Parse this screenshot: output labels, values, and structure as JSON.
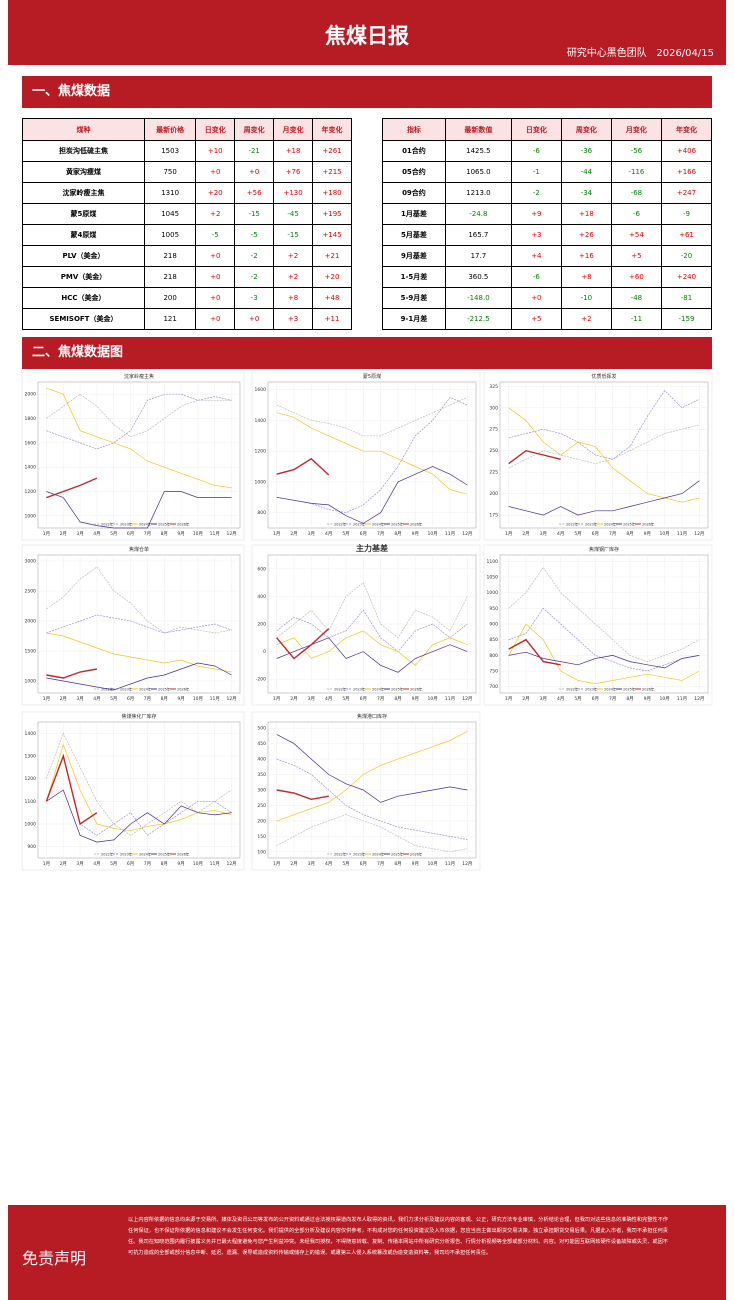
{
  "header": {
    "title": "焦煤日报",
    "team": "研究中心黑色团队",
    "date": "2026/04/15"
  },
  "sections": [
    "一、焦煤数据",
    "二、焦煤数据图"
  ],
  "tables": [
    {
      "columns": [
        "煤种",
        "最新价格",
        "日变化",
        "周变化",
        "月变化",
        "年变化"
      ],
      "rows": [
        [
          "担炭沟低硫主焦",
          "1503",
          "+10",
          "-21",
          "+18",
          "+261"
        ],
        [
          "黄家沟瘦煤",
          "750",
          "+0",
          "+0",
          "+76",
          "+215"
        ],
        [
          "沈家岭瘦主焦",
          "1310",
          "+20",
          "+56",
          "+130",
          "+180"
        ],
        [
          "蒙5原煤",
          "1045",
          "+2",
          "-15",
          "-45",
          "+195"
        ],
        [
          "蒙4原煤",
          "1005",
          "-5",
          "-5",
          "-15",
          "+145"
        ],
        [
          "PLV（美金）",
          "218",
          "+0",
          "-2",
          "+2",
          "+21"
        ],
        [
          "PMV（美金）",
          "218",
          "+0",
          "-2",
          "+2",
          "+20"
        ],
        [
          "HCC（美金）",
          "200",
          "+0",
          "-3",
          "+8",
          "+48"
        ],
        [
          "SEMISOFT（美金）",
          "121",
          "+0",
          "+0",
          "+3",
          "+11"
        ]
      ]
    },
    {
      "columns": [
        "指标",
        "最新数值",
        "日变化",
        "周变化",
        "月变化",
        "年变化"
      ],
      "rows": [
        [
          "01合约",
          "1425.5",
          "-6",
          "-36",
          "-56",
          "+406"
        ],
        [
          "05合约",
          "1065.0",
          "-1",
          "-44",
          "-116",
          "+166"
        ],
        [
          "09合约",
          "1213.0",
          "-2",
          "-34",
          "-68",
          "+247"
        ],
        [
          "1月基差",
          "-24.8",
          "+9",
          "+18",
          "-6",
          "-9"
        ],
        [
          "5月基差",
          "165.7",
          "+3",
          "+26",
          "+54",
          "+61"
        ],
        [
          "9月基差",
          "17.7",
          "+4",
          "+16",
          "+5",
          "-20"
        ],
        [
          "1-5月差",
          "360.5",
          "-6",
          "+8",
          "+60",
          "+240"
        ],
        [
          "5-9月差",
          "-148.0",
          "+0",
          "-10",
          "-48",
          "-81"
        ],
        [
          "9-1月差",
          "-212.5",
          "+5",
          "+2",
          "-11",
          "-159"
        ]
      ]
    }
  ],
  "chart_data": [
    {
      "type": "line",
      "title": "沈家岭瘦主焦",
      "categories": [
        "1月",
        "2月",
        "3月",
        "4月",
        "5月",
        "6月",
        "7月",
        "8月",
        "9月",
        "10月",
        "11月",
        "12月"
      ],
      "ylim": [
        900,
        2100
      ],
      "yticks": [
        1000,
        1200,
        1400,
        1600,
        1800,
        2000
      ],
      "grid": true,
      "series": [
        {
          "name": "2022年",
          "color": "#bbbbbb",
          "values": [
            1800,
            1900,
            2000,
            1900,
            1750,
            1650,
            1700,
            1800,
            1900,
            1950,
            1950,
            1950
          ]
        },
        {
          "name": "2023年",
          "color": "#9c8fd8",
          "values": [
            1700,
            1650,
            1600,
            1550,
            1600,
            1700,
            1950,
            2000,
            2000,
            1950,
            1980,
            1950
          ]
        },
        {
          "name": "2024年",
          "color": "#f5c518",
          "values": [
            2050,
            2000,
            1700,
            1650,
            1600,
            1550,
            1450,
            1400,
            1350,
            1300,
            1250,
            1230
          ]
        },
        {
          "name": "2025年",
          "color": "#4b2a99",
          "values": [
            1200,
            1150,
            950,
            920,
            900,
            900,
            900,
            1200,
            1200,
            1150,
            1150,
            1150
          ]
        },
        {
          "name": "2026年",
          "color": "#c0272d",
          "values": [
            1150,
            1200,
            1250,
            1310,
            null,
            null,
            null,
            null,
            null,
            null,
            null,
            null
          ]
        }
      ]
    },
    {
      "type": "line",
      "title": "蒙5原煤",
      "categories": [
        "1月",
        "2月",
        "3月",
        "4月",
        "5月",
        "6月",
        "7月",
        "8月",
        "9月",
        "10月",
        "11月",
        "12月"
      ],
      "ylim": [
        700,
        1650
      ],
      "yticks": [
        800,
        1000,
        1200,
        1400,
        1600
      ],
      "grid": true,
      "series": [
        {
          "name": "2022年",
          "color": "#bbbbbb",
          "values": [
            1500,
            1450,
            1400,
            1380,
            1350,
            1300,
            1300,
            1350,
            1400,
            1450,
            1500,
            1550
          ]
        },
        {
          "name": "2023年",
          "color": "#9c8fd8",
          "values": [
            900,
            880,
            860,
            820,
            800,
            850,
            950,
            1100,
            1300,
            1400,
            1550,
            1500
          ]
        },
        {
          "name": "2024年",
          "color": "#f5c518",
          "values": [
            1450,
            1420,
            1350,
            1300,
            1250,
            1200,
            1200,
            1150,
            1100,
            1050,
            950,
            920
          ]
        },
        {
          "name": "2025年",
          "color": "#4b2a99",
          "values": [
            900,
            880,
            860,
            850,
            780,
            730,
            800,
            1000,
            1050,
            1100,
            1050,
            980
          ]
        },
        {
          "name": "2026年",
          "color": "#c0272d",
          "values": [
            1050,
            1080,
            1150,
            1045,
            null,
            null,
            null,
            null,
            null,
            null,
            null,
            null
          ]
        }
      ]
    },
    {
      "type": "line",
      "title": "优质低挥发",
      "categories": [
        "1月",
        "2月",
        "3月",
        "4月",
        "5月",
        "6月",
        "7月",
        "8月",
        "9月",
        "10月",
        "11月",
        "12月"
      ],
      "ylim": [
        160,
        330
      ],
      "yticks": [
        175,
        200,
        225,
        250,
        275,
        300,
        325
      ],
      "grid": true,
      "series": [
        {
          "name": "2022年",
          "color": "#bbbbbb",
          "values": [
            230,
            240,
            250,
            245,
            240,
            235,
            240,
            250,
            260,
            270,
            275,
            280
          ]
        },
        {
          "name": "2023年",
          "color": "#9c8fd8",
          "values": [
            265,
            270,
            275,
            270,
            260,
            245,
            240,
            255,
            290,
            320,
            300,
            310
          ]
        },
        {
          "name": "2024年",
          "color": "#f5c518",
          "values": [
            300,
            285,
            260,
            245,
            260,
            255,
            230,
            215,
            200,
            195,
            190,
            195
          ]
        },
        {
          "name": "2025年",
          "color": "#4b2a99",
          "values": [
            185,
            180,
            175,
            185,
            175,
            180,
            180,
            185,
            190,
            195,
            200,
            215
          ]
        },
        {
          "name": "2026年",
          "color": "#c0272d",
          "values": [
            235,
            250,
            245,
            240,
            null,
            null,
            null,
            null,
            null,
            null,
            null,
            null
          ]
        }
      ]
    },
    {
      "type": "line",
      "title": "焦煤仓单",
      "categories": [
        "1月",
        "2月",
        "3月",
        "4月",
        "5月",
        "6月",
        "7月",
        "8月",
        "9月",
        "10月",
        "11月",
        "12月"
      ],
      "ylim": [
        800,
        3100
      ],
      "yticks": [
        1000,
        1500,
        2000,
        2500,
        3000
      ],
      "grid": true,
      "series": [
        {
          "name": "2022年",
          "color": "#bbbbbb",
          "values": [
            2200,
            2400,
            2700,
            2900,
            2500,
            2300,
            2000,
            1800,
            1900,
            1850,
            1800,
            1850
          ]
        },
        {
          "name": "2023年",
          "color": "#9c8fd8",
          "values": [
            1800,
            1900,
            2000,
            2100,
            2050,
            2000,
            1900,
            1800,
            1850,
            1900,
            1950,
            1850
          ]
        },
        {
          "name": "2024年",
          "color": "#f5c518",
          "values": [
            1800,
            1750,
            1650,
            1550,
            1450,
            1400,
            1350,
            1300,
            1350,
            1250,
            1200,
            1150
          ]
        },
        {
          "name": "2025年",
          "color": "#4b2a99",
          "values": [
            1050,
            1000,
            950,
            900,
            850,
            950,
            1050,
            1100,
            1200,
            1300,
            1250,
            1100
          ]
        },
        {
          "name": "2026年",
          "color": "#c0272d",
          "values": [
            1100,
            1050,
            1150,
            1200,
            null,
            null,
            null,
            null,
            null,
            null,
            null,
            null
          ]
        }
      ]
    },
    {
      "type": "line",
      "title": "主力基差",
      "categories": [
        "1月",
        "2月",
        "3月",
        "4月",
        "5月",
        "6月",
        "7月",
        "8月",
        "9月",
        "10月",
        "11月",
        "12月"
      ],
      "ylim": [
        -300,
        700
      ],
      "yticks": [
        -200,
        0,
        200,
        400,
        600
      ],
      "grid": true,
      "series": [
        {
          "name": "2022年",
          "color": "#bbbbbb",
          "values": [
            100,
            200,
            300,
            150,
            400,
            500,
            200,
            100,
            300,
            250,
            150,
            400
          ]
        },
        {
          "name": "2023年",
          "color": "#9c8fd8",
          "values": [
            150,
            250,
            200,
            100,
            150,
            300,
            100,
            0,
            150,
            200,
            100,
            200
          ]
        },
        {
          "name": "2024年",
          "color": "#f5c518",
          "values": [
            50,
            100,
            -50,
            0,
            100,
            150,
            50,
            0,
            -100,
            50,
            100,
            50
          ]
        },
        {
          "name": "2025年",
          "color": "#4b2a99",
          "values": [
            -50,
            0,
            50,
            100,
            -50,
            0,
            -100,
            -150,
            -50,
            0,
            50,
            0
          ]
        },
        {
          "name": "2026年",
          "color": "#c0272d",
          "values": [
            100,
            -50,
            50,
            166,
            null,
            null,
            null,
            null,
            null,
            null,
            null,
            null
          ]
        }
      ]
    },
    {
      "type": "line",
      "title": "焦煤钢厂库存",
      "categories": [
        "1月",
        "2月",
        "3月",
        "4月",
        "5月",
        "6月",
        "7月",
        "8月",
        "9月",
        "10月",
        "11月",
        "12月"
      ],
      "ylim": [
        680,
        1120
      ],
      "yticks": [
        700,
        750,
        800,
        850,
        900,
        950,
        1000,
        1050,
        1100
      ],
      "grid": true,
      "series": [
        {
          "name": "2022年",
          "color": "#bbbbbb",
          "values": [
            950,
            1000,
            1080,
            1000,
            950,
            900,
            850,
            800,
            780,
            800,
            820,
            850
          ]
        },
        {
          "name": "2023年",
          "color": "#9c8fd8",
          "values": [
            850,
            870,
            950,
            900,
            850,
            800,
            780,
            760,
            750,
            770,
            790,
            800
          ]
        },
        {
          "name": "2024年",
          "color": "#f5c518",
          "values": [
            800,
            900,
            850,
            750,
            720,
            710,
            720,
            730,
            740,
            730,
            720,
            750
          ]
        },
        {
          "name": "2025年",
          "color": "#4b2a99",
          "values": [
            800,
            810,
            790,
            780,
            770,
            790,
            800,
            780,
            770,
            760,
            790,
            800
          ]
        },
        {
          "name": "2026年",
          "color": "#c0272d",
          "values": [
            820,
            850,
            780,
            770,
            null,
            null,
            null,
            null,
            null,
            null,
            null,
            null
          ]
        }
      ]
    },
    {
      "type": "line",
      "title": "焦煤焦化厂库存",
      "categories": [
        "1月",
        "2月",
        "3月",
        "4月",
        "5月",
        "6月",
        "7月",
        "8月",
        "9月",
        "10月",
        "11月",
        "12月"
      ],
      "ylim": [
        850,
        1450
      ],
      "yticks": [
        900,
        1000,
        1100,
        1200,
        1300,
        1400
      ],
      "grid": true,
      "series": [
        {
          "name": "2022年",
          "color": "#bbbbbb",
          "values": [
            1200,
            1400,
            1250,
            1100,
            1000,
            950,
            1000,
            1050,
            1100,
            1050,
            1100,
            1150
          ]
        },
        {
          "name": "2023年",
          "color": "#9c8fd8",
          "values": [
            1100,
            1300,
            1000,
            950,
            1000,
            1050,
            950,
            1000,
            1050,
            1100,
            1100,
            1050
          ]
        },
        {
          "name": "2024年",
          "color": "#f5c518",
          "values": [
            1100,
            1350,
            1150,
            1000,
            980,
            970,
            990,
            1000,
            1020,
            1050,
            1060,
            1040
          ]
        },
        {
          "name": "2025年",
          "color": "#4b2a99",
          "values": [
            1100,
            1150,
            950,
            920,
            930,
            1000,
            1050,
            1000,
            1080,
            1050,
            1040,
            1050
          ]
        },
        {
          "name": "2026年",
          "color": "#c0272d",
          "values": [
            1100,
            1300,
            1000,
            1050,
            null,
            null,
            null,
            null,
            null,
            null,
            null,
            null
          ]
        }
      ]
    },
    {
      "type": "line",
      "title": "焦煤港口库存",
      "categories": [
        "1月",
        "2月",
        "3月",
        "4月",
        "5月",
        "6月",
        "7月",
        "8月",
        "9月",
        "10月",
        "11月",
        "12月"
      ],
      "ylim": [
        80,
        520
      ],
      "yticks": [
        100,
        150,
        200,
        250,
        300,
        350,
        400,
        450,
        500
      ],
      "grid": true,
      "series": [
        {
          "name": "2022年",
          "color": "#bbbbbb",
          "values": [
            120,
            150,
            180,
            200,
            220,
            200,
            180,
            150,
            120,
            110,
            100,
            110
          ]
        },
        {
          "name": "2023年",
          "color": "#9c8fd8",
          "values": [
            400,
            380,
            350,
            300,
            250,
            220,
            200,
            180,
            170,
            160,
            150,
            140
          ]
        },
        {
          "name": "2024年",
          "color": "#f5c518",
          "values": [
            200,
            220,
            240,
            260,
            300,
            350,
            380,
            400,
            420,
            440,
            460,
            490
          ]
        },
        {
          "name": "2025年",
          "color": "#4b2a99",
          "values": [
            480,
            450,
            400,
            350,
            320,
            300,
            260,
            280,
            290,
            300,
            310,
            300
          ]
        },
        {
          "name": "2026年",
          "color": "#c0272d",
          "values": [
            300,
            290,
            270,
            280,
            null,
            null,
            null,
            null,
            null,
            null,
            null,
            null
          ]
        }
      ]
    }
  ],
  "disclaimer": {
    "title": "免责声明",
    "text": "以上内容所依据的信息均来源于交易所、媒体及资讯公司等发布的公开资料或通过合法授权渠道向发布人取得的资讯，我们力求分析及建议内容的客观、公正，研究方法专业审慎，分析结论合理，但我司对这些信息的准确性和完整性不作任何保证，也不保证所依据的信息和建议不会发生任何变化。我们提供的全部分析及建议内容仅供参考，不构成对您的任何投资建议及入市依据，您应当自主做出期货交易决策，独立承担期货交易后果。凡据此入市者，我司不承担任何责任。我司在知晓范围内履行披露义务并已最大程度避免与您产生利益冲突。未经我司授权，不得随意转载、复制、传播本网站中所有研究分析报告、行情分析视频等全部或部分材料、内容。对可能因互联网软硬件设备故障或失灵、或因不可抗力造成的全部或部分信息中断、延迟、遗漏、误导或造成资料传输或储存上的错误、或遭第三人侵入系统篡改或伪造变造资料等，我司均不承担任何责任。"
  }
}
